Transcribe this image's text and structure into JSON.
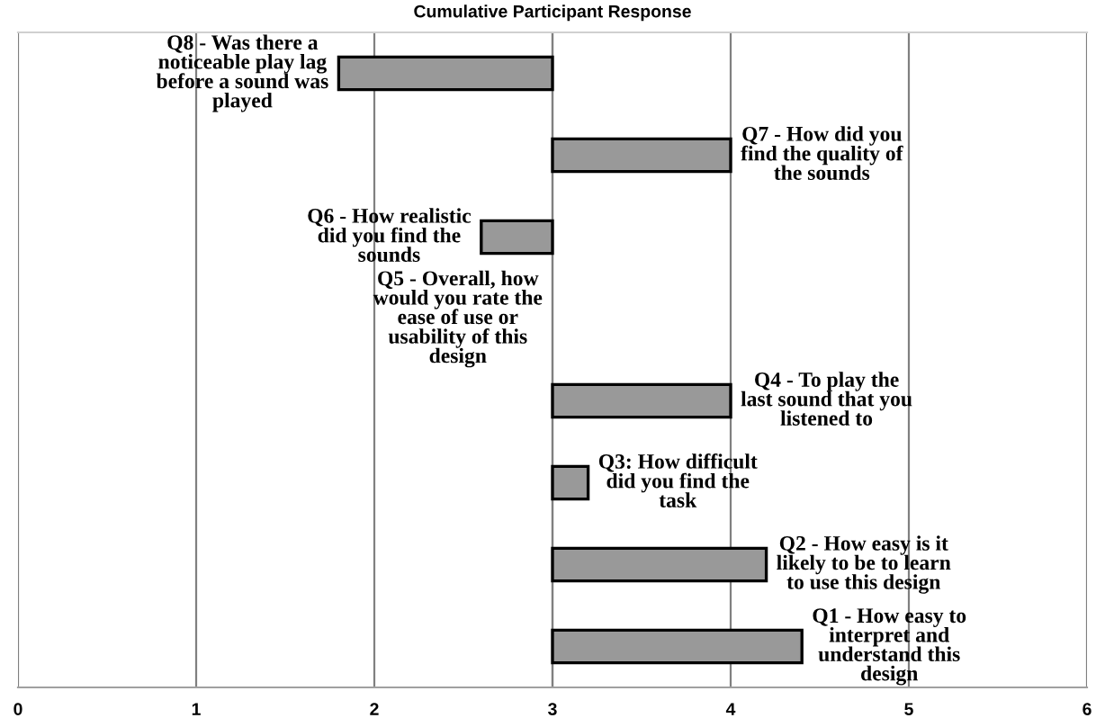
{
  "chart_data": {
    "type": "bar",
    "orientation": "horizontal",
    "title": "Cumulative Participant Response",
    "categories": [
      "Q8 - Was there a noticeable play lag before a sound was played",
      "Q7 - How did you find the quality of the sounds",
      "Q6 - How realistic did you find the sounds",
      "Q5 - Overall, how would you rate the ease of use or usability of this design",
      "Q4 - To play the last sound that you listened to",
      "Q3: How difficult did you find the task",
      "Q2 - How easy is it likely to be to learn to use this design",
      "Q1 - How easy to interpret and understand this design"
    ],
    "base": [
      3,
      3,
      3,
      null,
      3,
      3,
      3,
      3
    ],
    "values": [
      -1.2,
      1.0,
      -0.4,
      null,
      1.0,
      0.2,
      1.2,
      1.4
    ],
    "color": "#999999",
    "xlim": [
      0,
      6
    ],
    "xticks": [
      0,
      1,
      2,
      3,
      4,
      5,
      6
    ],
    "grid": "x"
  }
}
